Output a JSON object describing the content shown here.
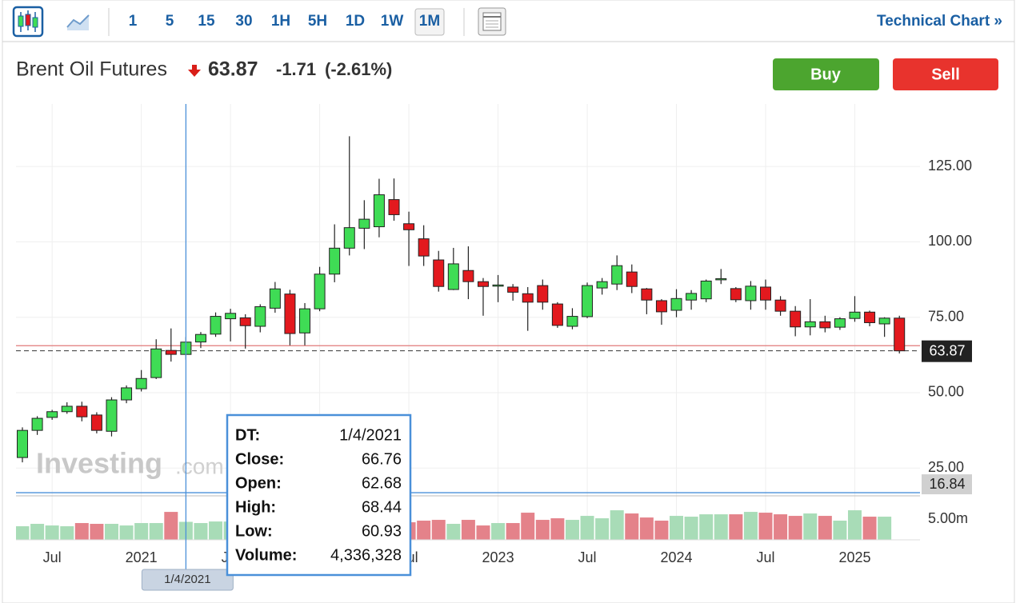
{
  "toolbar": {
    "intervals": [
      "1",
      "5",
      "15",
      "30",
      "1H",
      "5H",
      "1D",
      "1W",
      "1M"
    ],
    "active": "1M",
    "link": "Technical Chart »"
  },
  "header": {
    "instrument": "Brent Oil Futures",
    "change": "-1.71",
    "change_pct": "(-2.61%)",
    "buy": "Buy",
    "sell": "Sell"
  },
  "watermark": {
    "brand": "Investing",
    "suffix": ".com"
  },
  "tooltip": {
    "labels": [
      "DT:",
      "Close:",
      "Open:",
      "High:",
      "Low:",
      "Volume:"
    ]
  },
  "chart_data": {
    "type": "candlestick",
    "x": [
      "2020-05",
      "2020-06",
      "2020-07",
      "2020-08",
      "2020-09",
      "2020-10",
      "2020-11",
      "2020-12",
      "2021-01",
      "2021-02",
      "2021-03",
      "2021-04",
      "2021-05",
      "2021-06",
      "2021-07",
      "2021-08",
      "2021-09",
      "2021-10",
      "2021-11",
      "2021-12",
      "2022-01",
      "2022-02",
      "2022-03",
      "2022-04",
      "2022-05",
      "2022-06",
      "2022-07",
      "2022-08",
      "2022-09",
      "2022-10",
      "2022-11",
      "2022-12",
      "2023-01",
      "2023-02",
      "2023-03",
      "2023-04",
      "2023-05",
      "2023-06",
      "2023-07",
      "2023-08",
      "2023-09",
      "2023-10",
      "2023-11",
      "2023-12",
      "2024-01",
      "2024-02",
      "2024-03",
      "2024-04",
      "2024-05",
      "2024-06",
      "2024-07",
      "2024-08",
      "2024-09",
      "2024-10",
      "2024-11",
      "2024-12",
      "2025-01",
      "2025-02",
      "2025-03",
      "2025-04"
    ],
    "open": [
      28.5,
      37.5,
      41.8,
      43.7,
      45.5,
      42.6,
      37.2,
      47.6,
      51.3,
      55.0,
      64.0,
      62.68,
      66.8,
      69.4,
      74.5,
      74.8,
      72.0,
      78.0,
      82.7,
      69.8,
      77.8,
      89.3,
      97.9,
      104.5,
      105.0,
      114.0,
      106.0,
      101.0,
      94.0,
      84.2,
      90.5,
      86.8,
      85.5,
      85.0,
      82.8,
      85.5,
      79.4,
      72.0,
      75.2,
      84.7,
      86.0,
      90.0,
      84.4,
      80.5,
      77.3,
      80.7,
      81.1,
      87.5,
      84.5,
      80.5,
      85.0,
      80.7,
      77.0,
      71.8,
      73.5,
      71.7,
      74.6,
      76.7,
      72.8,
      74.7
    ],
    "high": [
      38.5,
      42.2,
      44.3,
      46.8,
      47.0,
      43.5,
      48.5,
      52.4,
      57.5,
      67.7,
      71.3,
      68.44,
      70.1,
      76.6,
      77.8,
      76.0,
      79.3,
      86.7,
      84.1,
      79.7,
      91.7,
      105.8,
      135.0,
      113.8,
      120.9,
      121.0,
      110.0,
      105.5,
      97.0,
      98.0,
      98.5,
      88.0,
      89.0,
      86.0,
      85.0,
      87.5,
      80.0,
      78.0,
      86.5,
      88.0,
      95.5,
      92.5,
      84.7,
      81.0,
      84.3,
      84.0,
      87.5,
      91.0,
      85.0,
      87.0,
      87.5,
      82.0,
      78.7,
      81.0,
      75.5,
      75.0,
      82.0,
      77.2,
      75.0,
      75.5
    ],
    "low": [
      26.9,
      36.0,
      41.0,
      43.0,
      40.5,
      36.5,
      35.5,
      46.5,
      50.4,
      54.5,
      60.3,
      60.93,
      64.8,
      68.5,
      67.0,
      64.6,
      70.0,
      76.5,
      65.7,
      65.7,
      77.0,
      86.6,
      95.5,
      97.6,
      101.5,
      107.0,
      92.0,
      92.0,
      83.5,
      84.0,
      81.0,
      75.5,
      80.0,
      80.5,
      70.5,
      77.5,
      71.5,
      71.0,
      74.7,
      82.5,
      84.0,
      83.0,
      76.0,
      72.5,
      75.0,
      77.5,
      80.0,
      86.0,
      80.0,
      77.5,
      77.5,
      75.5,
      68.7,
      69.0,
      70.0,
      70.8,
      73.5,
      72.0,
      68.5,
      63.0
    ],
    "close": [
      37.5,
      41.5,
      43.7,
      45.5,
      42.0,
      37.5,
      47.6,
      51.6,
      54.7,
      64.5,
      62.7,
      66.76,
      69.3,
      75.3,
      76.3,
      72.2,
      78.5,
      84.4,
      69.6,
      77.8,
      89.3,
      97.9,
      104.7,
      107.5,
      115.6,
      109.0,
      104.0,
      95.3,
      85.2,
      92.7,
      86.8,
      85.2,
      85.7,
      83.3,
      80.0,
      80.0,
      72.3,
      75.3,
      85.5,
      86.8,
      92.1,
      85.2,
      80.7,
      76.8,
      81.2,
      82.9,
      87.0,
      87.8,
      80.8,
      85.3,
      80.7,
      77.0,
      71.8,
      73.5,
      71.5,
      74.5,
      76.7,
      73.2,
      74.7,
      63.87
    ],
    "up_color": "#3fdc55",
    "down_color": "#e3191e",
    "ylim": [
      15.8,
      145.7
    ],
    "yticks": [
      {
        "value": 25,
        "label": "25.00"
      },
      {
        "value": 50,
        "label": "50.00"
      },
      {
        "value": 75,
        "label": "75.00"
      },
      {
        "value": 100,
        "label": "100.00"
      },
      {
        "value": 125,
        "label": "125.00"
      }
    ],
    "xticks": [
      {
        "value": "2020-07",
        "label": "Jul"
      },
      {
        "value": "2021-01",
        "label": "2021"
      },
      {
        "value": "2021-07",
        "label": "Jul"
      },
      {
        "value": "2022-01",
        "label": "2022"
      },
      {
        "value": "2022-07",
        "label": "Jul"
      },
      {
        "value": "2023-01",
        "label": "2023"
      },
      {
        "value": "2023-07",
        "label": "Jul"
      },
      {
        "value": "2024-01",
        "label": "2024"
      },
      {
        "value": "2024-07",
        "label": "Jul"
      },
      {
        "value": "2025-01",
        "label": "2025"
      }
    ],
    "grid": true,
    "prev_close": 65.58,
    "prev_close_color": "#e07a7a",
    "volume": {
      "values": [
        3270000,
        3850000,
        3460000,
        3270000,
        4040000,
        3850000,
        3850000,
        3460000,
        4040000,
        4040000,
        6730000,
        4336328,
        4040000,
        4420000,
        4400000,
        4600000,
        4200000,
        4800000,
        5000000,
        3900000,
        4600000,
        5200000,
        6000000,
        4400000,
        4500000,
        4800000,
        4230000,
        4620000,
        4810000,
        3850000,
        4810000,
        3460000,
        4040000,
        4040000,
        6540000,
        4810000,
        5190000,
        4810000,
        5770000,
        5190000,
        7120000,
        6350000,
        5380000,
        4620000,
        5770000,
        5580000,
        6150000,
        6150000,
        6150000,
        6730000,
        6540000,
        6150000,
        5770000,
        6350000,
        5770000,
        4620000,
        7120000,
        5580000,
        5580000,
        null
      ],
      "up_color": "#a8dcb7",
      "down_color": "#e4828a",
      "ylim": [
        0,
        10600000
      ],
      "yticks": [
        {
          "value": 5000000,
          "label": "5.00m"
        }
      ]
    },
    "crosshair": {
      "x": "2021-04",
      "date_label": "1/4/2021",
      "y": 16.84,
      "volume_label": "4,336,328",
      "color": "#4a90d9"
    }
  }
}
